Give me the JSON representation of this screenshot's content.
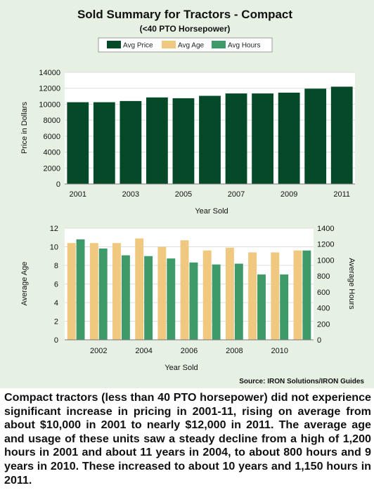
{
  "chart_data": [
    {
      "type": "bar",
      "title": "Sold Summary for Tractors - Compact",
      "subtitle": "(<40 PTO Horsepower)",
      "legend": [
        "Avg Price",
        "Avg Age",
        "Avg Hours"
      ],
      "xlabel": "Year Sold",
      "ylabel": "Price in Dollars",
      "categories": [
        "2001",
        "2002",
        "2003",
        "2004",
        "2005",
        "2006",
        "2007",
        "2008",
        "2009",
        "2010",
        "2011"
      ],
      "xtick_labels": [
        "2001",
        "2003",
        "2005",
        "2007",
        "2009",
        "2011"
      ],
      "yticks": [
        "0",
        "2000",
        "4000",
        "6000",
        "8000",
        "10000",
        "12000",
        "14000"
      ],
      "ylim": [
        0,
        14000
      ],
      "series": [
        {
          "name": "Avg Price",
          "values": [
            10250,
            10250,
            10400,
            10850,
            10750,
            11050,
            11350,
            11350,
            11450,
            11950,
            12200
          ]
        }
      ]
    },
    {
      "type": "bar",
      "xlabel": "Year Sold",
      "ylabel": "Average Age",
      "y2label": "Average Hours",
      "categories": [
        "2001",
        "2002",
        "2003",
        "2004",
        "2005",
        "2006",
        "2007",
        "2008",
        "2009",
        "2010",
        "2011"
      ],
      "xtick_labels": [
        "2002",
        "2004",
        "2006",
        "2008",
        "2010"
      ],
      "yticks": [
        "0",
        "2",
        "4",
        "6",
        "8",
        "10",
        "12"
      ],
      "y2ticks": [
        "0",
        "200",
        "400",
        "600",
        "800",
        "1000",
        "1200",
        "1400"
      ],
      "ylim": [
        0,
        12
      ],
      "y2lim": [
        0,
        1400
      ],
      "series": [
        {
          "name": "Avg Age",
          "axis": "left",
          "values": [
            10.4,
            10.4,
            10.4,
            10.9,
            10.0,
            10.7,
            9.6,
            9.9,
            9.4,
            9.4,
            9.6
          ]
        },
        {
          "name": "Avg Hours",
          "axis": "right",
          "values": [
            1260,
            1145,
            1060,
            1050,
            1020,
            970,
            945,
            955,
            820,
            820,
            1120
          ]
        }
      ],
      "source": "Source: IRON Solutions/IRON Guides"
    }
  ],
  "colors": {
    "price": "#044a29",
    "age": "#f0c880",
    "hours": "#3f9a6a",
    "panel": "#e6f1e3"
  },
  "caption": "Compact tractors (less than 40 PTO horsepower) did not experience significant increase in pricing in 2001-11, rising on average from about $10,000 in 2001 to nearly $12,000 in 2011. The average age and usage of these units saw a steady decline from a high of 1,200 hours in 2001 and about 11 years in 2004, to about 800 hours and 9 years in 2010. These increased to about 10 years and 1,150 hours in 2011."
}
